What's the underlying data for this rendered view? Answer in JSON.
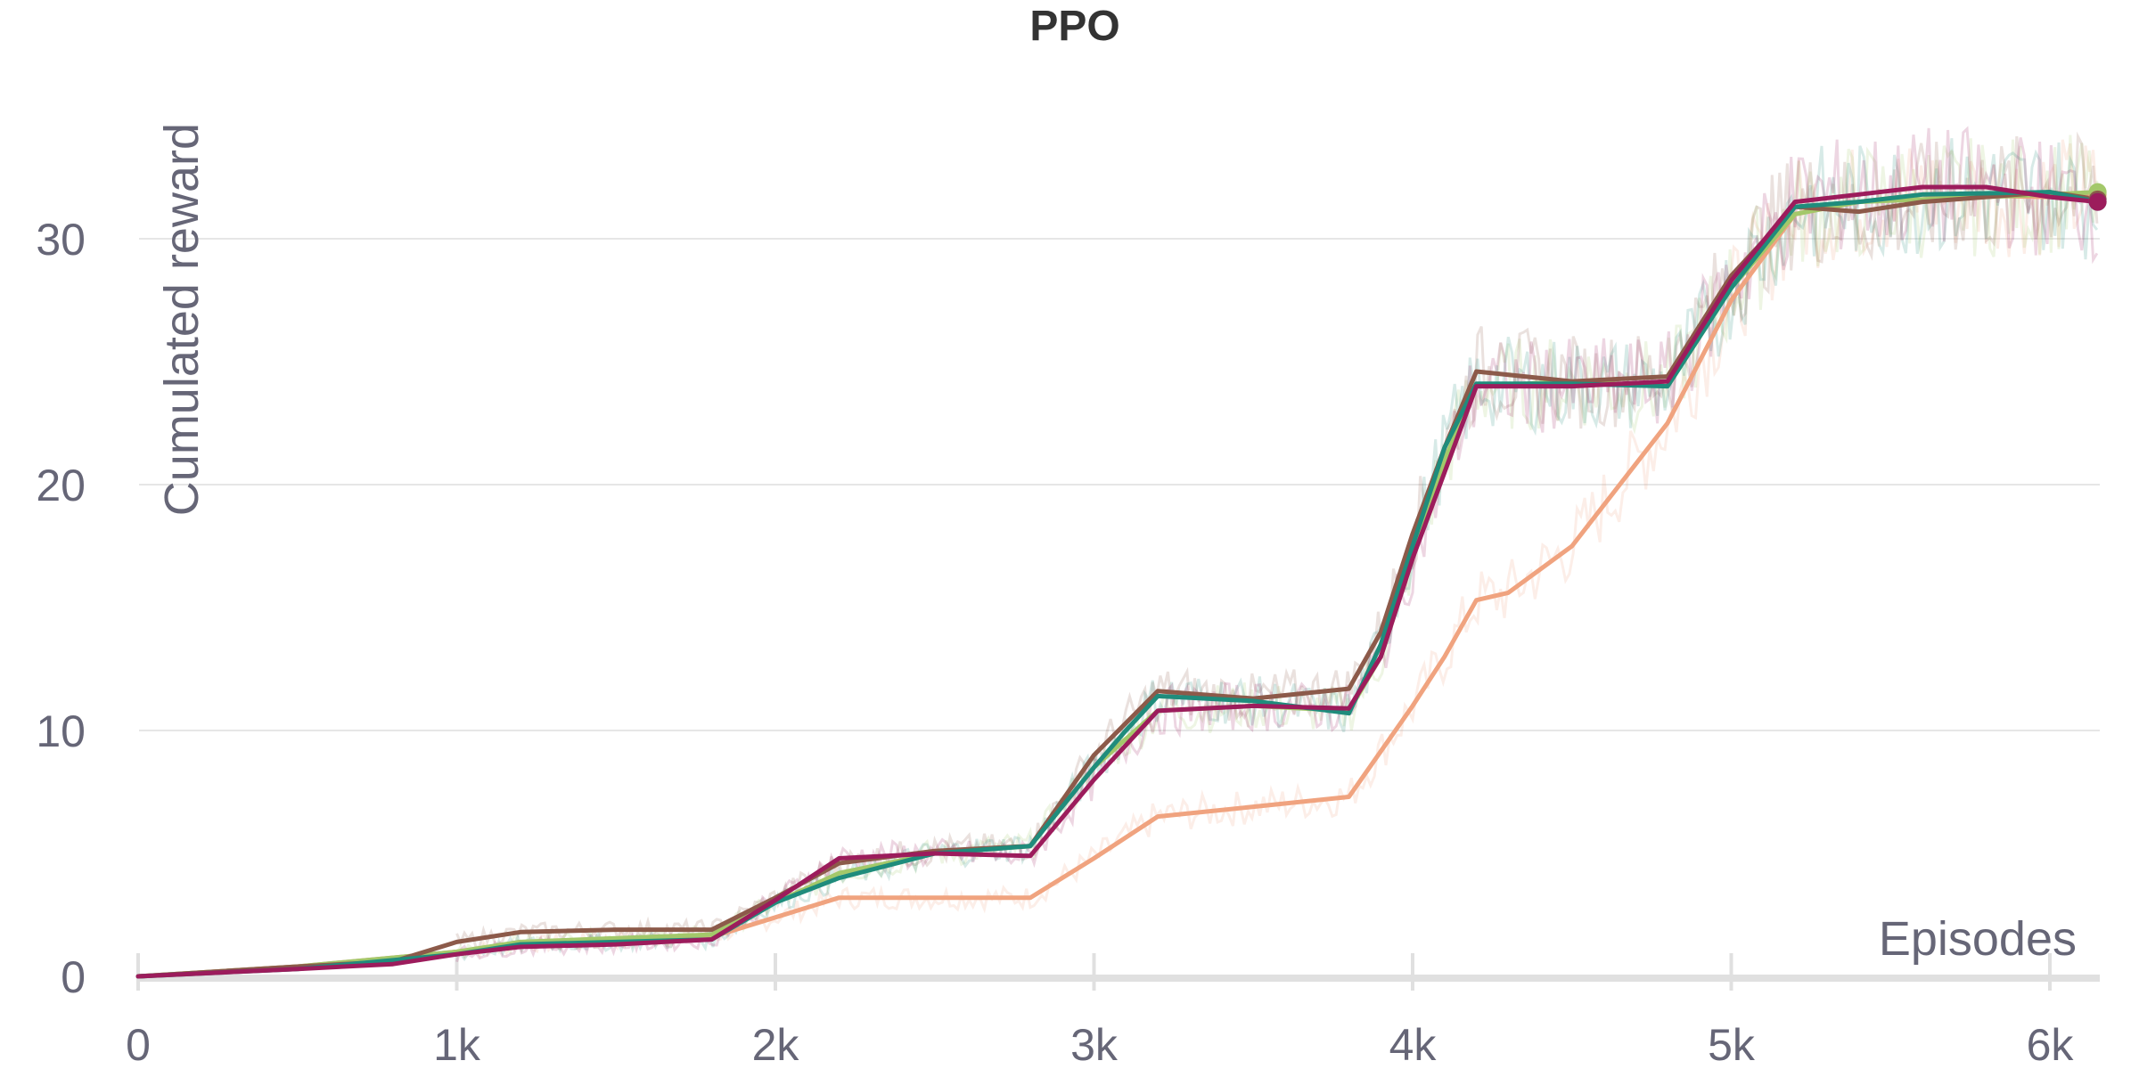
{
  "chart_data": {
    "type": "line",
    "title": "PPO",
    "xlabel": "Episodes",
    "ylabel": "Cumulated reward",
    "xlim": [
      0,
      6150
    ],
    "ylim": [
      0,
      36
    ],
    "x_ticks": [
      {
        "value": 0,
        "label": "0"
      },
      {
        "value": 1000,
        "label": "1k"
      },
      {
        "value": 2000,
        "label": "2k"
      },
      {
        "value": 3000,
        "label": "3k"
      },
      {
        "value": 4000,
        "label": "4k"
      },
      {
        "value": 5000,
        "label": "5k"
      },
      {
        "value": 6000,
        "label": "6k"
      }
    ],
    "y_ticks": [
      {
        "value": 0,
        "label": "0"
      },
      {
        "value": 10,
        "label": "10"
      },
      {
        "value": 20,
        "label": "20"
      },
      {
        "value": 30,
        "label": "30"
      }
    ],
    "grid": true,
    "legend": "none",
    "series": [
      {
        "color": "#f0a37f",
        "x": [
          0,
          500,
          1000,
          1200,
          1800,
          2000,
          2200,
          2800,
          3000,
          3200,
          3500,
          3800,
          4000,
          4100,
          4200,
          4300,
          4500,
          4800,
          5000,
          5200,
          5400,
          5600,
          6000,
          6150
        ],
        "y": [
          0,
          0.4,
          1.0,
          1.3,
          1.6,
          2.4,
          3.2,
          3.2,
          4.8,
          6.5,
          6.9,
          7.3,
          11.0,
          13.0,
          15.3,
          15.6,
          17.5,
          22.5,
          27.5,
          31.0,
          31.5,
          31.8,
          31.7,
          31.8
        ]
      },
      {
        "color": "#a3c86a",
        "x": [
          0,
          500,
          1000,
          1200,
          1800,
          2000,
          2200,
          2500,
          2800,
          3000,
          3200,
          3500,
          3800,
          3900,
          4000,
          4100,
          4200,
          4500,
          4800,
          5000,
          5200,
          5400,
          5600,
          6000,
          6150
        ],
        "y": [
          0,
          0.4,
          1.0,
          1.4,
          1.7,
          3.0,
          4.2,
          5.0,
          5.3,
          8.5,
          10.8,
          11.0,
          10.8,
          13.0,
          17.0,
          21.0,
          24.0,
          24.2,
          24.0,
          28.0,
          31.0,
          31.5,
          31.6,
          31.8,
          31.9
        ]
      },
      {
        "color": "#8c5a4a",
        "x": [
          0,
          500,
          800,
          1000,
          1200,
          1500,
          1800,
          2000,
          2200,
          2500,
          2800,
          3000,
          3200,
          3500,
          3800,
          3900,
          4000,
          4100,
          4200,
          4500,
          4800,
          5000,
          5200,
          5400,
          5600,
          6000,
          6150
        ],
        "y": [
          0,
          0.4,
          0.6,
          1.4,
          1.8,
          1.9,
          1.9,
          3.2,
          4.6,
          5.1,
          5.3,
          9.0,
          11.6,
          11.3,
          11.7,
          14.0,
          18.0,
          21.5,
          24.6,
          24.2,
          24.4,
          28.5,
          31.3,
          31.1,
          31.5,
          31.9,
          31.6
        ]
      },
      {
        "color": "#1f8c7c",
        "x": [
          0,
          500,
          1000,
          1200,
          1500,
          1800,
          2000,
          2200,
          2500,
          2800,
          3000,
          3100,
          3200,
          3500,
          3800,
          3900,
          4000,
          4100,
          4200,
          4500,
          4800,
          5000,
          5200,
          5400,
          5600,
          6000,
          6150
        ],
        "y": [
          0,
          0.3,
          0.9,
          1.3,
          1.4,
          1.5,
          3.0,
          4.0,
          5.0,
          5.3,
          8.5,
          10.0,
          11.4,
          11.2,
          10.7,
          13.5,
          17.5,
          21.5,
          24.1,
          24.1,
          24.0,
          28.0,
          31.3,
          31.5,
          31.8,
          31.9,
          31.5
        ]
      },
      {
        "color": "#9c1c5c",
        "x": [
          0,
          500,
          800,
          1000,
          1200,
          1500,
          1800,
          2000,
          2200,
          2500,
          2800,
          3000,
          3200,
          3500,
          3800,
          3900,
          4000,
          4100,
          4200,
          4500,
          4800,
          5000,
          5200,
          5400,
          5600,
          5800,
          6000,
          6150
        ],
        "y": [
          0,
          0.3,
          0.5,
          0.9,
          1.2,
          1.3,
          1.5,
          3.1,
          4.8,
          5.0,
          4.9,
          8.0,
          10.8,
          11.0,
          10.9,
          13.0,
          17.0,
          20.5,
          24.0,
          24.0,
          24.2,
          28.3,
          31.5,
          31.8,
          32.1,
          32.1,
          31.7,
          31.5
        ]
      }
    ]
  }
}
